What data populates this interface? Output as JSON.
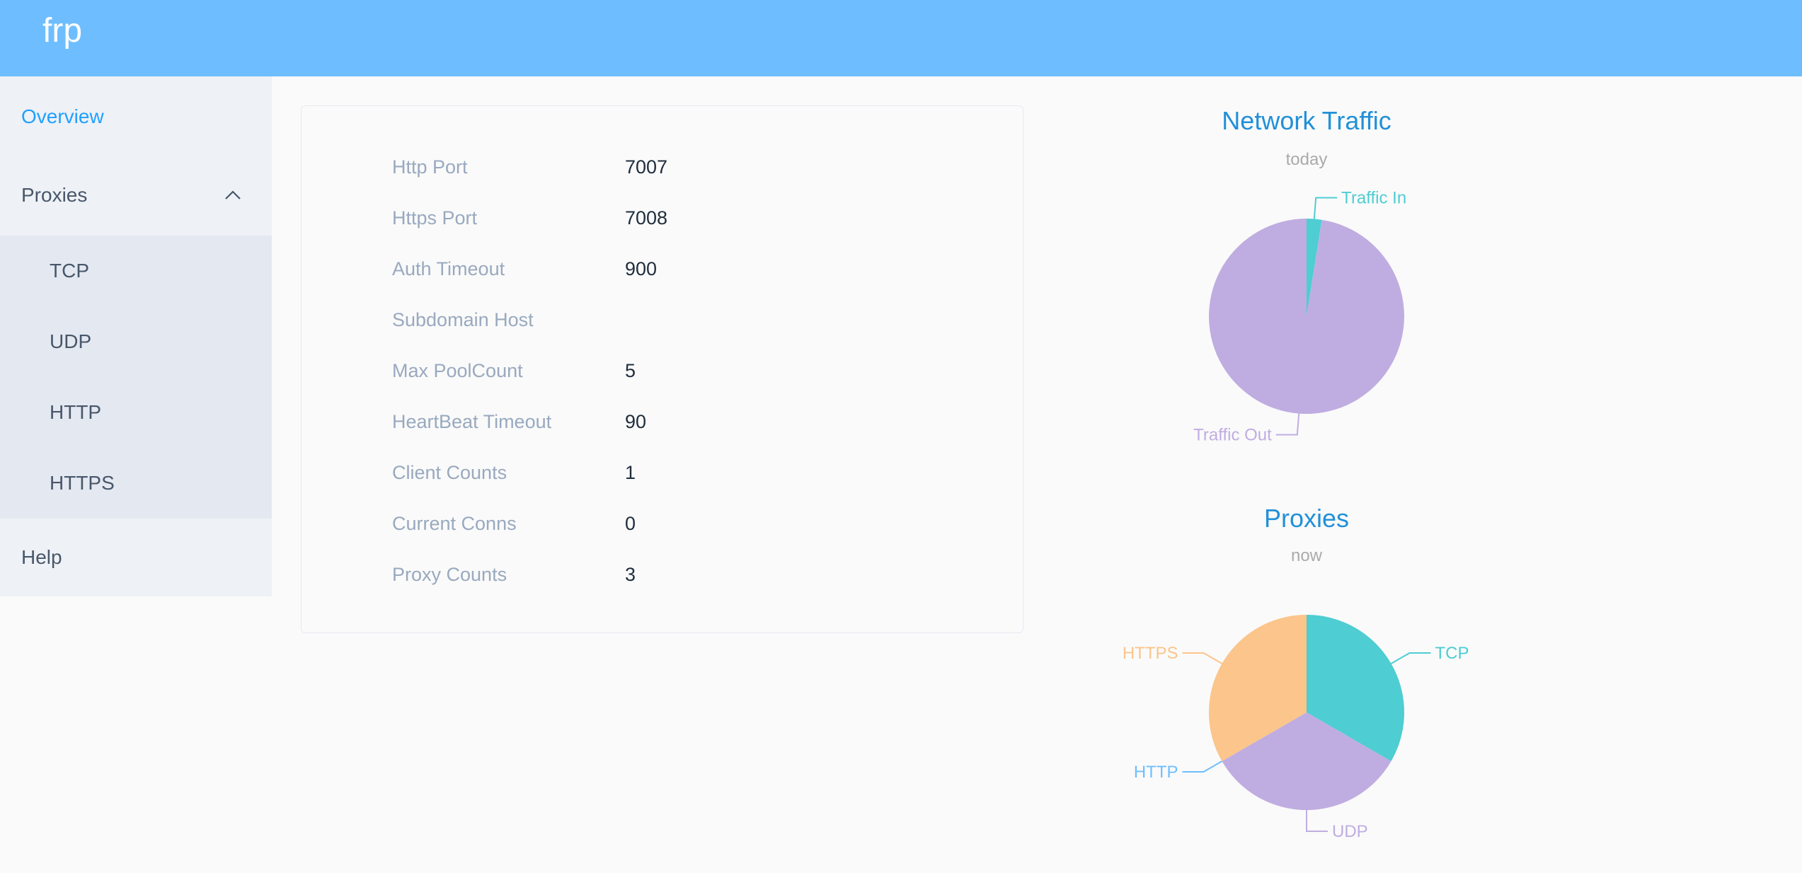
{
  "header": {
    "title": "frp"
  },
  "sidebar": {
    "items": [
      {
        "label": "Overview"
      },
      {
        "label": "Proxies"
      },
      {
        "label": "Help"
      }
    ],
    "submenu": [
      {
        "label": "TCP"
      },
      {
        "label": "UDP"
      },
      {
        "label": "HTTP"
      },
      {
        "label": "HTTPS"
      }
    ]
  },
  "server_info": [
    {
      "key": "Http Port",
      "value": "7007"
    },
    {
      "key": "Https Port",
      "value": "7008"
    },
    {
      "key": "Auth Timeout",
      "value": "900"
    },
    {
      "key": "Subdomain Host",
      "value": ""
    },
    {
      "key": "Max PoolCount",
      "value": "5"
    },
    {
      "key": "HeartBeat Timeout",
      "value": "90"
    },
    {
      "key": "Client Counts",
      "value": "1"
    },
    {
      "key": "Current Conns",
      "value": "0"
    },
    {
      "key": "Proxy Counts",
      "value": "3"
    }
  ],
  "chart_data": [
    {
      "type": "pie",
      "title": "Network Traffic",
      "subtitle": "today",
      "categories": [
        "Traffic In",
        "Traffic Out"
      ],
      "values": [
        2.5,
        97.5
      ],
      "colors": [
        "#4ecdd2",
        "#bfade1"
      ]
    },
    {
      "type": "pie",
      "title": "Proxies",
      "subtitle": "now",
      "categories": [
        "TCP",
        "UDP",
        "HTTP",
        "HTTPS"
      ],
      "values": [
        1,
        1,
        0,
        1
      ],
      "colors": [
        "#4ecdd2",
        "#bfade1",
        "#6ebeff",
        "#fbc58b"
      ]
    }
  ]
}
